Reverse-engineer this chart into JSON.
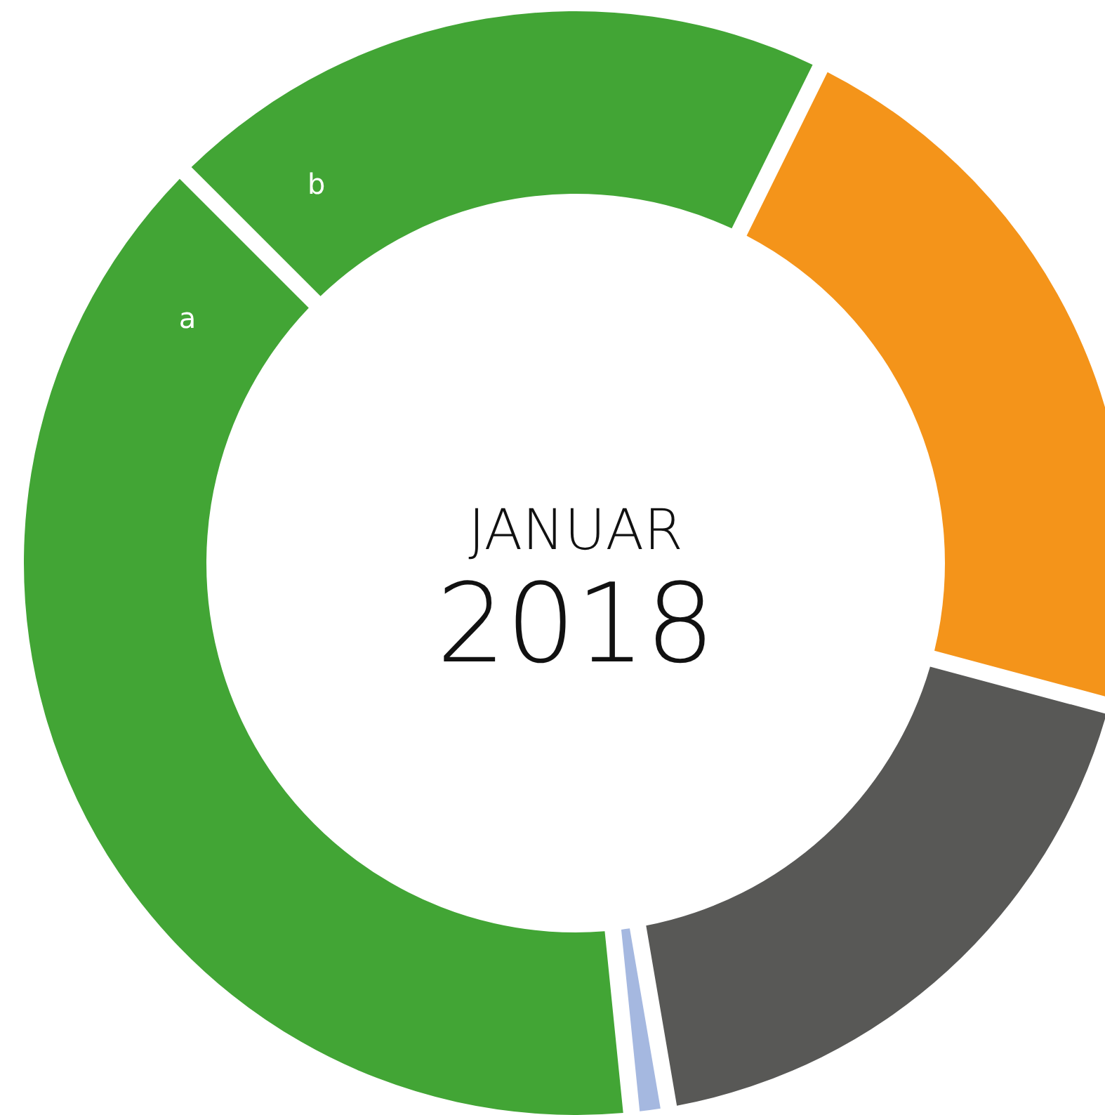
{
  "chart_data": {
    "type": "donut",
    "title": "JANUAR",
    "subtitle": "2018",
    "categories": [
      "b",
      null,
      null,
      null,
      "a"
    ],
    "values": [
      19.8,
      21.9,
      18.1,
      0.7,
      39.5
    ],
    "colors": [
      "#42a535",
      "#f4941a",
      "#585856",
      "#a5b8e0",
      "#42a535"
    ]
  }
}
